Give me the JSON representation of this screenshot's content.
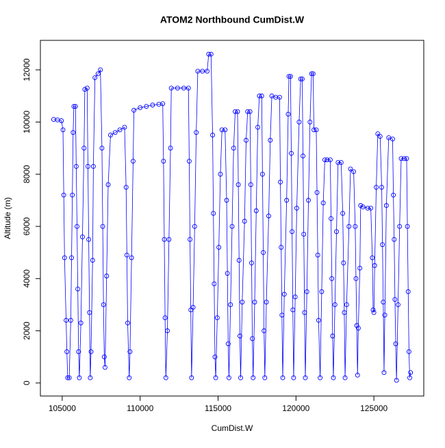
{
  "chart_data": {
    "type": "line",
    "title": "ATOM2 Northbound CumDist.W",
    "x_label": "CumDist.W",
    "y_label": "Altitude (m)",
    "color": "#0000ff",
    "markers": true,
    "x": [
      104450,
      104700,
      104950,
      105050,
      105100,
      105150,
      105250,
      105300,
      105350,
      105450,
      105550,
      105600,
      105650,
      105700,
      105750,
      105850,
      105900,
      105950,
      106000,
      106050,
      106100,
      106200,
      106300,
      106400,
      106450,
      106600,
      106650,
      106700,
      106750,
      106800,
      106850,
      106950,
      107000,
      107100,
      107300,
      107450,
      107550,
      107600,
      107650,
      107700,
      107750,
      107850,
      107950,
      108100,
      108400,
      108700,
      109000,
      109100,
      109150,
      109200,
      109300,
      109350,
      109450,
      109550,
      109600,
      110000,
      110400,
      110800,
      111200,
      111450,
      111500,
      111550,
      111600,
      111650,
      111750,
      111850,
      111950,
      112000,
      112400,
      112800,
      113100,
      113150,
      113200,
      113250,
      113300,
      113400,
      113500,
      113600,
      113700,
      114000,
      114300,
      114400,
      114550,
      114650,
      114700,
      114750,
      114800,
      114850,
      114950,
      115050,
      115150,
      115250,
      115450,
      115550,
      115600,
      115650,
      115700,
      115800,
      115900,
      116000,
      116100,
      116250,
      116300,
      116350,
      116400,
      116450,
      116550,
      116700,
      116800,
      116900,
      117050,
      117100,
      117150,
      117200,
      117250,
      117350,
      117450,
      117550,
      117650,
      117800,
      117850,
      117900,
      117950,
      118000,
      118100,
      118250,
      118350,
      118450,
      118700,
      118950,
      119000,
      119050,
      119100,
      119150,
      119250,
      119400,
      119500,
      119550,
      119650,
      119700,
      119750,
      119800,
      119850,
      119950,
      120050,
      120200,
      120300,
      120400,
      120450,
      120500,
      120550,
      120600,
      120700,
      120800,
      120900,
      121000,
      121100,
      121150,
      121300,
      121350,
      121400,
      121450,
      121550,
      121650,
      121750,
      121850,
      122000,
      122200,
      122250,
      122300,
      122350,
      122400,
      122500,
      122600,
      122700,
      122900,
      123000,
      123050,
      123100,
      123150,
      123250,
      123400,
      123500,
      123700,
      123800,
      123850,
      123900,
      123950,
      124000,
      124100,
      124150,
      124300,
      124600,
      124800,
      124900,
      124950,
      125000,
      125050,
      125150,
      125250,
      125400,
      125500,
      125550,
      125600,
      125650,
      125700,
      125800,
      125950,
      126200,
      126250,
      126300,
      126350,
      126400,
      126450,
      126550,
      126650,
      126750,
      126950,
      127100,
      127150,
      127200,
      127250,
      127300,
      127350
    ],
    "values": [
      10100,
      10080,
      10050,
      9700,
      7200,
      4800,
      2400,
      1200,
      200,
      200,
      2400,
      4800,
      7200,
      9600,
      10600,
      10600,
      8300,
      6000,
      3600,
      1200,
      200,
      2300,
      5600,
      9000,
      11250,
      11300,
      8300,
      5500,
      2700,
      200,
      1200,
      4700,
      8300,
      11700,
      11850,
      12000,
      9000,
      6000,
      3000,
      1000,
      600,
      4100,
      7600,
      9500,
      9600,
      9700,
      9800,
      7500,
      4900,
      2300,
      200,
      1200,
      4800,
      8500,
      10450,
      10550,
      10600,
      10650,
      10680,
      10700,
      8500,
      5500,
      2500,
      200,
      2000,
      5500,
      9000,
      11300,
      11300,
      11300,
      11300,
      8500,
      5500,
      2800,
      200,
      2900,
      6000,
      9600,
      11950,
      11950,
      11950,
      12600,
      12600,
      9500,
      6500,
      3800,
      1000,
      200,
      2500,
      5200,
      8000,
      9700,
      9700,
      7000,
      4200,
      1500,
      200,
      3000,
      6000,
      9000,
      10400,
      10400,
      7600,
      4700,
      1800,
      200,
      3100,
      6200,
      9300,
      10400,
      10400,
      7600,
      4600,
      1700,
      200,
      3100,
      6600,
      9800,
      11000,
      11000,
      8000,
      5000,
      2000,
      200,
      3100,
      6400,
      9300,
      11000,
      10950,
      10950,
      7700,
      5200,
      2600,
      200,
      3400,
      7000,
      10300,
      11750,
      11750,
      8800,
      5800,
      2800,
      200,
      3300,
      6700,
      10000,
      11650,
      11650,
      8700,
      5700,
      2700,
      200,
      3500,
      7000,
      10000,
      11850,
      11850,
      9700,
      9700,
      7300,
      4900,
      2400,
      200,
      3500,
      6900,
      8550,
      8550,
      8550,
      6300,
      4000,
      1800,
      200,
      3000,
      5800,
      8450,
      8450,
      6500,
      4600,
      2700,
      200,
      3000,
      6000,
      8200,
      8100,
      6000,
      4000,
      2200,
      300,
      2100,
      4400,
      6800,
      6750,
      6700,
      6700,
      4800,
      2800,
      2700,
      4500,
      7500,
      9550,
      9450,
      7500,
      5300,
      3100,
      400,
      2600,
      6800,
      9400,
      9350,
      7200,
      5500,
      3200,
      1500,
      100,
      3000,
      6000,
      8600,
      8600,
      8600,
      6000,
      3500,
      1200,
      200,
      400
    ],
    "xlim": [
      103600,
      128200
    ],
    "xticks": [
      105000,
      110000,
      115000,
      120000,
      125000
    ],
    "ylim": [
      -500,
      13130
    ],
    "yticks": [
      0,
      2000,
      4000,
      6000,
      8000,
      10000,
      12000
    ]
  }
}
